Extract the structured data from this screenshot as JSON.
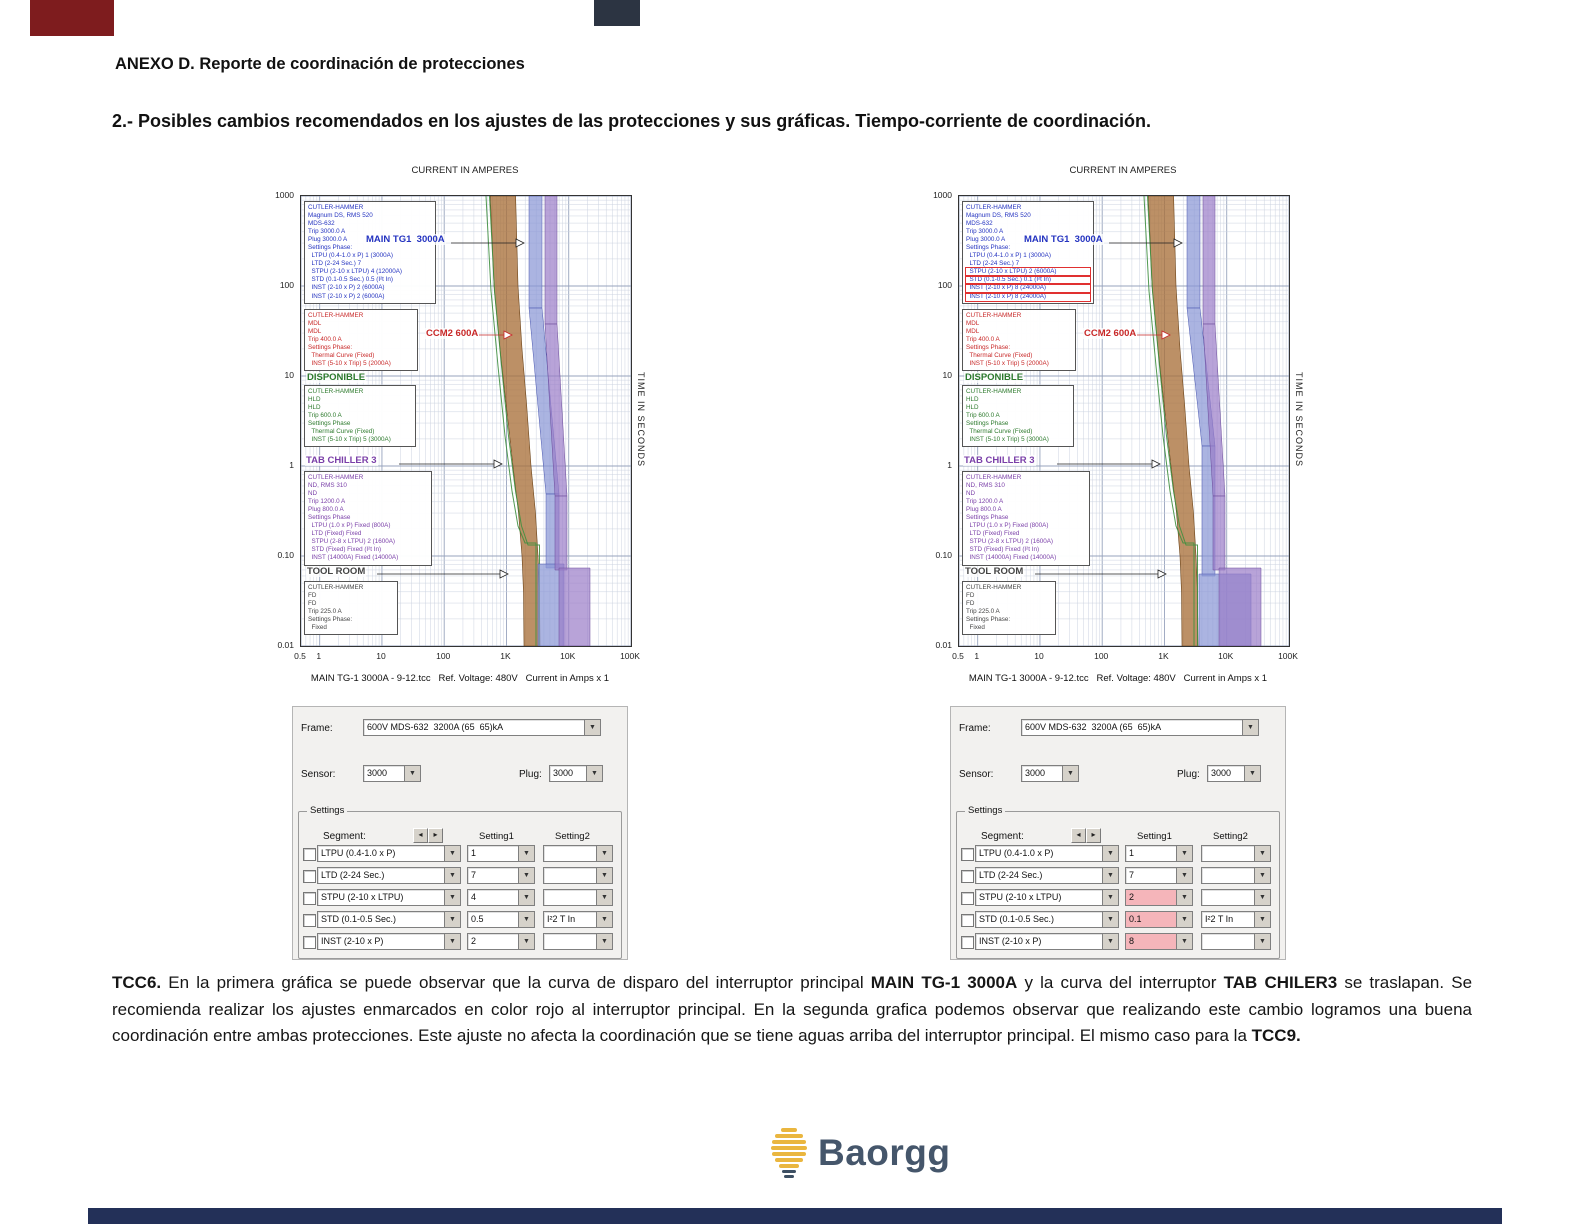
{
  "page": {
    "heading1": "ANEXO D. Reporte de coordinación de protecciones",
    "heading2": "2.- Posibles cambios recomendados en los ajustes de las protecciones y sus gráficas. Tiempo-corriente de coordinación."
  },
  "icons": {
    "dropdown": "▼",
    "spin_left": "◂",
    "spin_right": "▸"
  },
  "colors": {
    "main_curve": "#2433c0",
    "ccm2_curve": "#c82828",
    "disponible_curve": "#2d7a2d",
    "chiller_curve": "#7a3fa8",
    "highlight": "#f5b5ba",
    "logo_gold": "#eab63f",
    "logo_navy": "#45566b"
  },
  "charts": [
    {
      "title": "CURRENT IN AMPERES",
      "y_axis_label": "TIME IN SECONDS",
      "y_ticks": [
        "1000",
        "100",
        "10",
        "1",
        "0.10",
        "0.01"
      ],
      "x_ticks": [
        "0.5",
        "1",
        "10",
        "100",
        "1K",
        "10K",
        "100K"
      ],
      "caption": "MAIN TG-1 3000A - 9-12.tcc   Ref. Voltage: 480V   Current in Amps x 1",
      "labels": {
        "main": "MAIN TG1  3000A",
        "ccm2": "CCM2 600A",
        "disponible": "DISPONIBLE",
        "chiller": "TAB CHILLER 3",
        "toolroom": "TOOL ROOM"
      },
      "boxes": {
        "main": [
          "CUTLER-HAMMER",
          "Magnum DS, RMS 520",
          "MDS-632",
          "Trip 3000.0 A",
          "Plug 3000.0 A",
          "Settings Phase:",
          "  LTPU (0.4-1.0 x P) 1 (3000A)",
          "  LTD (2-24 Sec.) 7",
          "  STPU (2-10 x LTPU) 4 (12000A)",
          "  STD (0.1-0.5 Sec.) 0.5 (I²t In)",
          "  INST (2-10 x P) 2 (6000A)",
          "  INST (2-10 x P) 2 (6000A)"
        ],
        "ccm2": [
          "CUTLER-HAMMER",
          "MDL",
          "MDL",
          "Trip 400.0 A",
          "Settings Phase:",
          "  Thermal Curve (Fixed)",
          "  INST (5-10 x Trip) 5 (2000A)"
        ],
        "disponible": [
          "CUTLER-HAMMER",
          "HLD",
          "HLD",
          "Trip 600.0 A",
          "Settings Phase",
          "  Thermal Curve (Fixed)",
          "  INST (5-10 x Trip) 5 (3000A)"
        ],
        "chiller": [
          "CUTLER-HAMMER",
          "ND, RMS 310",
          "ND",
          "Trip 1200.0 A",
          "Plug 800.0 A",
          "Settings Phase",
          "  LTPU (1.0 x P) Fixed (800A)",
          "  LTD (Fixed) Fixed",
          "  STPU (2-8 x LTPU) 2 (1600A)",
          "  STD (Fixed) Fixed (I²t In)",
          "  INST (14000A) Fixed (14000A)"
        ],
        "toolroom": [
          "CUTLER-HAMMER",
          "FD",
          "FD",
          "Trip 225.0 A",
          "Settings Phase:",
          "  Fixed"
        ]
      }
    },
    {
      "title": "CURRENT IN AMPERES",
      "y_axis_label": "TIME IN SECONDS",
      "y_ticks": [
        "1000",
        "100",
        "10",
        "1",
        "0.10",
        "0.01"
      ],
      "x_ticks": [
        "0.5",
        "1",
        "10",
        "100",
        "1K",
        "10K",
        "100K"
      ],
      "caption": "MAIN TG-1 3000A - 9-12.tcc   Ref. Voltage: 480V   Current in Amps x 1",
      "labels": {
        "main": "MAIN TG1  3000A",
        "ccm2": "CCM2 600A",
        "disponible": "DISPONIBLE",
        "chiller": "TAB CHILLER 3",
        "toolroom": "TOOL ROOM"
      },
      "boxes": {
        "main": [
          "CUTLER-HAMMER",
          "Magnum DS, RMS 520",
          "MDS-632",
          "Trip 3000.0 A",
          "Plug 3000.0 A",
          "Settings Phase:",
          "  LTPU (0.4-1.0 x P) 1 (3000A)",
          "  LTD (2-24 Sec.) 7",
          {
            "t": "  STPU (2-10 x LTPU) 2 (6000A)",
            "hl": true
          },
          {
            "t": "  STD (0.1-0.5 Sec.) 0.1 (I²t In)",
            "hl": true
          },
          {
            "t": "  INST (2-10 x P) 8 (24000A)",
            "hl": true
          },
          {
            "t": "  INST (2-10 x P) 8 (24000A)",
            "hl": true
          }
        ],
        "ccm2": [
          "CUTLER-HAMMER",
          "MDL",
          "MDL",
          "Trip 400.0 A",
          "Settings Phase:",
          "  Thermal Curve (Fixed)",
          "  INST (5-10 x Trip) 5 (2000A)"
        ],
        "disponible": [
          "CUTLER-HAMMER",
          "HLD",
          "HLD",
          "Trip 600.0 A",
          "Settings Phase",
          "  Thermal Curve (Fixed)",
          "  INST (5-10 x Trip) 5 (3000A)"
        ],
        "chiller": [
          "CUTLER-HAMMER",
          "ND, RMS 310",
          "ND",
          "Trip 1200.0 A",
          "Plug 800.0 A",
          "Settings Phase",
          "  LTPU (1.0 x P) Fixed (800A)",
          "  LTD (Fixed) Fixed",
          "  STPU (2-8 x LTPU) 2 (1600A)",
          "  STD (Fixed) Fixed (I²t In)",
          "  INST (14000A) Fixed (14000A)"
        ],
        "toolroom": [
          "CUTLER-HAMMER",
          "FD",
          "FD",
          "Trip 225.0 A",
          "Settings Phase:",
          "  Fixed"
        ]
      }
    }
  ],
  "dialogs": [
    {
      "frame_label": "Frame:",
      "frame_value": "600V MDS-632  3200A (65  65)kA",
      "sensor_label": "Sensor:",
      "sensor_value": "3000",
      "plug_label": "Plug:",
      "plug_value": "3000",
      "settings_label": "Settings",
      "segment_label": "Segment:",
      "col1": "Setting1",
      "col2": "Setting2",
      "rows": [
        {
          "segment": "LTPU (0.4-1.0 x P)",
          "s1": "1",
          "s2": "",
          "hl": false
        },
        {
          "segment": "LTD (2-24 Sec.)",
          "s1": "7",
          "s2": "",
          "hl": false
        },
        {
          "segment": "STPU (2-10 x LTPU)",
          "s1": "4",
          "s2": "",
          "hl": false
        },
        {
          "segment": "STD (0.1-0.5 Sec.)",
          "s1": "0.5",
          "s2": "I²2 T In",
          "hl": false
        },
        {
          "segment": "INST (2-10 x P)",
          "s1": "2",
          "s2": "",
          "hl": false
        }
      ]
    },
    {
      "frame_label": "Frame:",
      "frame_value": "600V MDS-632  3200A (65  65)kA",
      "sensor_label": "Sensor:",
      "sensor_value": "3000",
      "plug_label": "Plug:",
      "plug_value": "3000",
      "settings_label": "Settings",
      "segment_label": "Segment:",
      "col1": "Setting1",
      "col2": "Setting2",
      "rows": [
        {
          "segment": "LTPU (0.4-1.0 x P)",
          "s1": "1",
          "s2": "",
          "hl": false
        },
        {
          "segment": "LTD (2-24 Sec.)",
          "s1": "7",
          "s2": "",
          "hl": false
        },
        {
          "segment": "STPU (2-10 x LTPU)",
          "s1": "2",
          "s2": "",
          "hl": true
        },
        {
          "segment": "STD (0.1-0.5 Sec.)",
          "s1": "0.1",
          "s2": "I²2 T In",
          "hl": true
        },
        {
          "segment": "INST (2-10 x P)",
          "s1": "8",
          "s2": "",
          "hl": true
        }
      ]
    }
  ],
  "paragraph": [
    {
      "t": "TCC6.",
      "b": true
    },
    {
      "t": " En la primera gráfica se puede observar que la curva de disparo del interruptor principal ",
      "b": false
    },
    {
      "t": "MAIN TG-1 3000A",
      "b": true
    },
    {
      "t": " y la curva del interruptor ",
      "b": false
    },
    {
      "t": "TAB CHILER3",
      "b": true
    },
    {
      "t": " se traslapan. Se recomienda realizar los ajustes enmarcados en color rojo al interruptor principal. En la segunda grafica podemos observar que realizando este cambio logramos una buena coordinación entre ambas protecciones. Este ajuste no afecta la coordinación que se tiene aguas arriba del interruptor principal. El mismo caso para la ",
      "b": false
    },
    {
      "t": "TCC9.",
      "b": true
    }
  ],
  "logo": {
    "text": "Baorgg"
  }
}
